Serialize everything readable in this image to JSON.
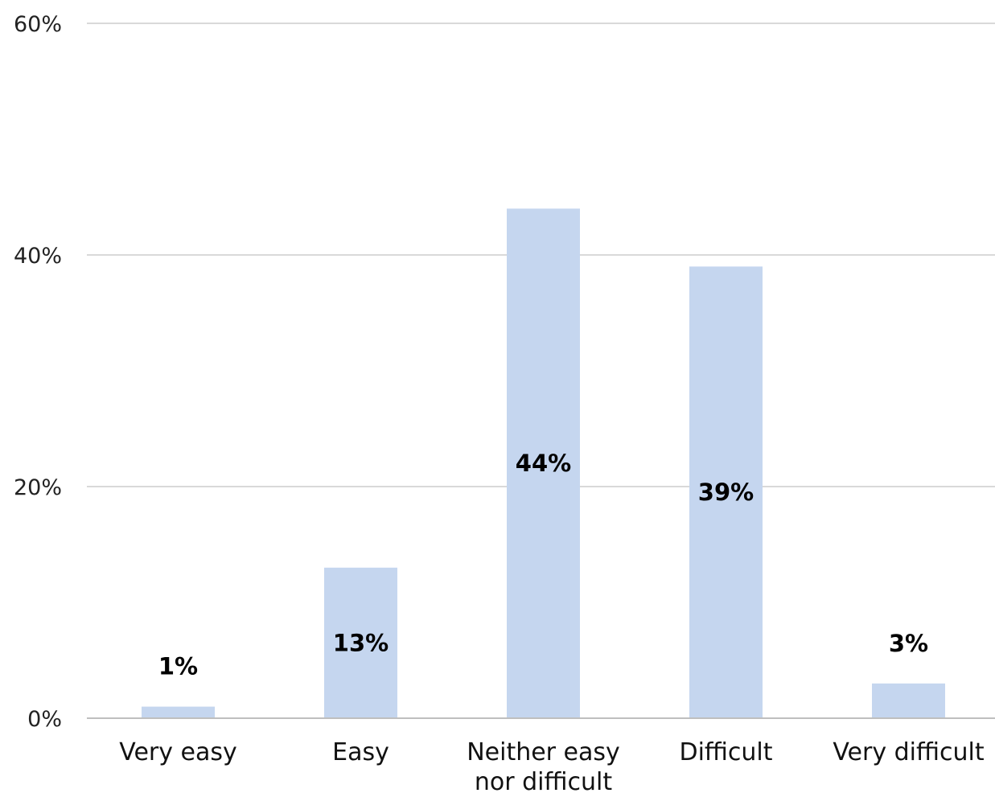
{
  "chart_data": {
    "type": "bar",
    "title": "",
    "xlabel": "",
    "ylabel": "",
    "categories": [
      [
        "Very easy"
      ],
      [
        "Easy"
      ],
      [
        "Neither easy",
        "nor difficult"
      ],
      [
        "Difficult"
      ],
      [
        "Very difficult"
      ]
    ],
    "values": [
      1,
      13,
      44,
      39,
      3
    ],
    "value_labels": [
      "1%",
      "13%",
      "44%",
      "39%",
      "3%"
    ],
    "label_position": [
      "above",
      "inside",
      "inside",
      "inside",
      "above"
    ],
    "ylim": [
      0,
      60
    ],
    "yticks": [
      0,
      20,
      40,
      60
    ],
    "ytick_labels": [
      "0%",
      "20%",
      "40%",
      "60%"
    ],
    "grid": true,
    "legend": "none",
    "colors": {
      "bar": "#c5d6ef",
      "grid": "#d9d9d9",
      "axis": "#bfbfbf"
    }
  }
}
